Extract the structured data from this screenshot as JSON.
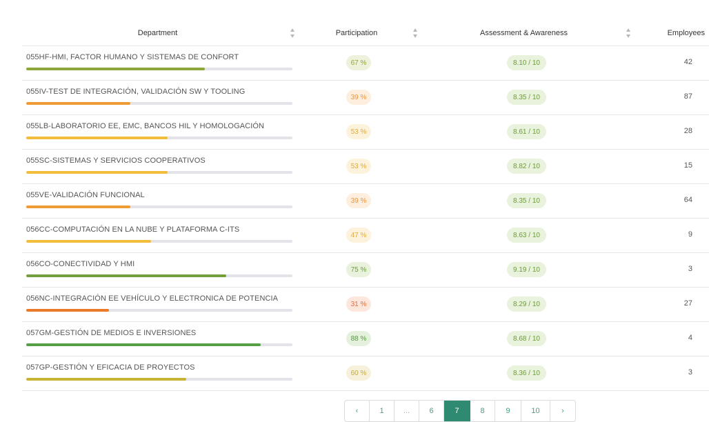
{
  "table": {
    "headers": {
      "department": "Department",
      "participation": "Participation",
      "assessment": "Assessment & Awareness",
      "employees": "Employees"
    },
    "rows": [
      {
        "department": "055HF-HMI, FACTOR HUMANO Y SISTEMAS DE CONFORT",
        "participation": "67 %",
        "participation_pct": 67,
        "assessment": "8.10 / 10",
        "employees": "42",
        "color": "#8ca63a",
        "badge_bg": "#eef1dc",
        "badge_fg": "#8ca63a"
      },
      {
        "department": "055IV-TEST DE INTEGRACIÓN, VALIDACIÓN SW Y TOOLING",
        "participation": "39 %",
        "participation_pct": 39,
        "assessment": "8.35 / 10",
        "employees": "87",
        "color": "#ee9a35",
        "badge_bg": "#fdeedd",
        "badge_fg": "#e8953a"
      },
      {
        "department": "055LB-LABORATORIO EE, EMC, BANCOS HIL Y HOMOLOGACIÓN",
        "participation": "53 %",
        "participation_pct": 53,
        "assessment": "8.61 / 10",
        "employees": "28",
        "color": "#f3bd3c",
        "badge_bg": "#fdf3dc",
        "badge_fg": "#e3a93a"
      },
      {
        "department": "055SC-SISTEMAS Y SERVICIOS COOPERATIVOS",
        "participation": "53 %",
        "participation_pct": 53,
        "assessment": "8.82 / 10",
        "employees": "15",
        "color": "#f3bd3c",
        "badge_bg": "#fdf3dc",
        "badge_fg": "#e3a93a"
      },
      {
        "department": "055VE-VALIDACIÓN FUNCIONAL",
        "participation": "39 %",
        "participation_pct": 39,
        "assessment": "8.35 / 10",
        "employees": "64",
        "color": "#ee9a35",
        "badge_bg": "#fdeedd",
        "badge_fg": "#e8953a"
      },
      {
        "department": "056CC-COMPUTACIÓN EN LA NUBE Y PLATAFORMA C-ITS",
        "participation": "47 %",
        "participation_pct": 47,
        "assessment": "8.63 / 10",
        "employees": "9",
        "color": "#f3bd3c",
        "badge_bg": "#fdf3dc",
        "badge_fg": "#e3a93a"
      },
      {
        "department": "056CO-CONECTIVIDAD Y HMI",
        "participation": "75 %",
        "participation_pct": 75,
        "assessment": "9.19 / 10",
        "employees": "3",
        "color": "#72a03c",
        "badge_bg": "#e9f2dc",
        "badge_fg": "#6c9a3a"
      },
      {
        "department": "056NC-INTEGRACIÓN EE VEHÍCULO Y ELECTRONICA DE POTENCIA",
        "participation": "31 %",
        "participation_pct": 31,
        "assessment": "8.29 / 10",
        "employees": "27",
        "color": "#ea7a2a",
        "badge_bg": "#fde6dc",
        "badge_fg": "#e46d35"
      },
      {
        "department": "057GM-GESTIÓN DE MEDIOS E INVERSIONES",
        "participation": "88 %",
        "participation_pct": 88,
        "assessment": "8.68 / 10",
        "employees": "4",
        "color": "#55a044",
        "badge_bg": "#e5f1dc",
        "badge_fg": "#4e9a3e"
      },
      {
        "department": "057GP-GESTIÓN Y EFICACIA DE PROYECTOS",
        "participation": "60 %",
        "participation_pct": 60,
        "assessment": "8.36 / 10",
        "employees": "3",
        "color": "#c8b234",
        "badge_bg": "#f7f1dc",
        "badge_fg": "#c3aa3a"
      }
    ]
  },
  "pagination": {
    "items": [
      "‹",
      "1",
      "...",
      "6",
      "7",
      "8",
      "9",
      "10",
      "›"
    ],
    "active": "7"
  }
}
